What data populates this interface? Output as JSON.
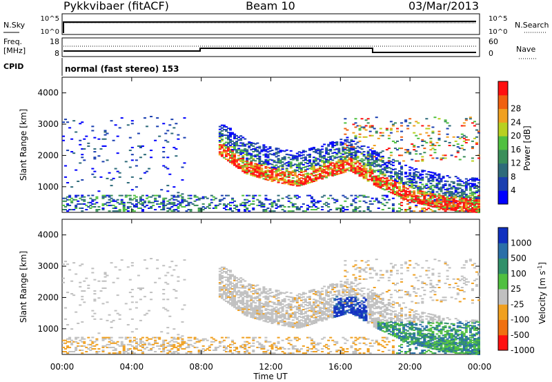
{
  "header": {
    "station": "Pykkvibaer (fitACF)",
    "beam": "Beam 10",
    "date": "03/Mar/2013"
  },
  "nsky_panel": {
    "left_label": "N.Sky",
    "right_label": "N.Search",
    "ticks_left": [
      "10^5",
      "10^0"
    ],
    "ticks_right": [
      "10^5",
      "10^0"
    ]
  },
  "freq_panel": {
    "left_label_1": "Freq.",
    "left_label_2": "[MHz]",
    "cpid_label": "CPID",
    "right_label": "Nave",
    "ticks_left": [
      "18",
      "8"
    ],
    "ticks_right": [
      "60",
      "0"
    ]
  },
  "cpid_text": "normal (fast stereo) 153",
  "x_axis": {
    "label": "Time UT",
    "ticks": [
      "00:00",
      "04:00",
      "08:00",
      "12:00",
      "16:00",
      "20:00",
      "00:00"
    ]
  },
  "y_axis": {
    "label": "Slant Range [km]",
    "ticks": [
      "1000",
      "2000",
      "3000",
      "4000"
    ]
  },
  "power_colorbar": {
    "label": "Power [dB]",
    "ticks": [
      "4",
      "8",
      "12",
      "16",
      "20",
      "24",
      "28"
    ],
    "colors": [
      "#0000ff",
      "#1a3fb0",
      "#2e6b7a",
      "#3a8f5a",
      "#50c040",
      "#b8d020",
      "#f0a020",
      "#f06010",
      "#ff1010"
    ]
  },
  "velocity_colorbar": {
    "label": "Velocity [m s",
    "label_sup": "-1",
    "label_end": "]",
    "ticks": [
      "1000",
      "500",
      "100",
      "25",
      "-25",
      "-100",
      "-500",
      "-1000"
    ],
    "colors": [
      "#1030c0",
      "#2a6fa8",
      "#30906a",
      "#50c040",
      "#c0c0c0",
      "#f0a020",
      "#f07010",
      "#ff1010"
    ]
  },
  "chart_data": {
    "type": "heatmap",
    "title": "Pykkvibaer (fitACF) Beam 10 03/Mar/2013",
    "xlabel": "Time UT",
    "ylabel": "Slant Range [km]",
    "xlim": [
      0,
      24
    ],
    "ylim": [
      180,
      4500
    ],
    "panels": [
      {
        "name": "Power",
        "unit": "dB",
        "colorbar_range": [
          0,
          30
        ]
      },
      {
        "name": "Velocity",
        "unit": "m s^-1",
        "colorbar_range": [
          -1000,
          1000
        ]
      }
    ],
    "frequency_MHz": [
      {
        "from": 0,
        "to": 8.0,
        "value": 10
      },
      {
        "from": 8.0,
        "to": 18.0,
        "value": 12
      },
      {
        "from": 18.0,
        "to": 24,
        "value": 10
      }
    ],
    "main_echo_band": [
      {
        "t": 9,
        "range": 2200
      },
      {
        "t": 10.5,
        "range": 1600
      },
      {
        "t": 12,
        "range": 1350
      },
      {
        "t": 13.5,
        "range": 1200
      },
      {
        "t": 15,
        "range": 1450
      },
      {
        "t": 16.5,
        "range": 1700
      },
      {
        "t": 18,
        "range": 1200
      },
      {
        "t": 20,
        "range": 700
      },
      {
        "t": 22,
        "range": 450
      },
      {
        "t": 24,
        "range": 350
      }
    ]
  }
}
